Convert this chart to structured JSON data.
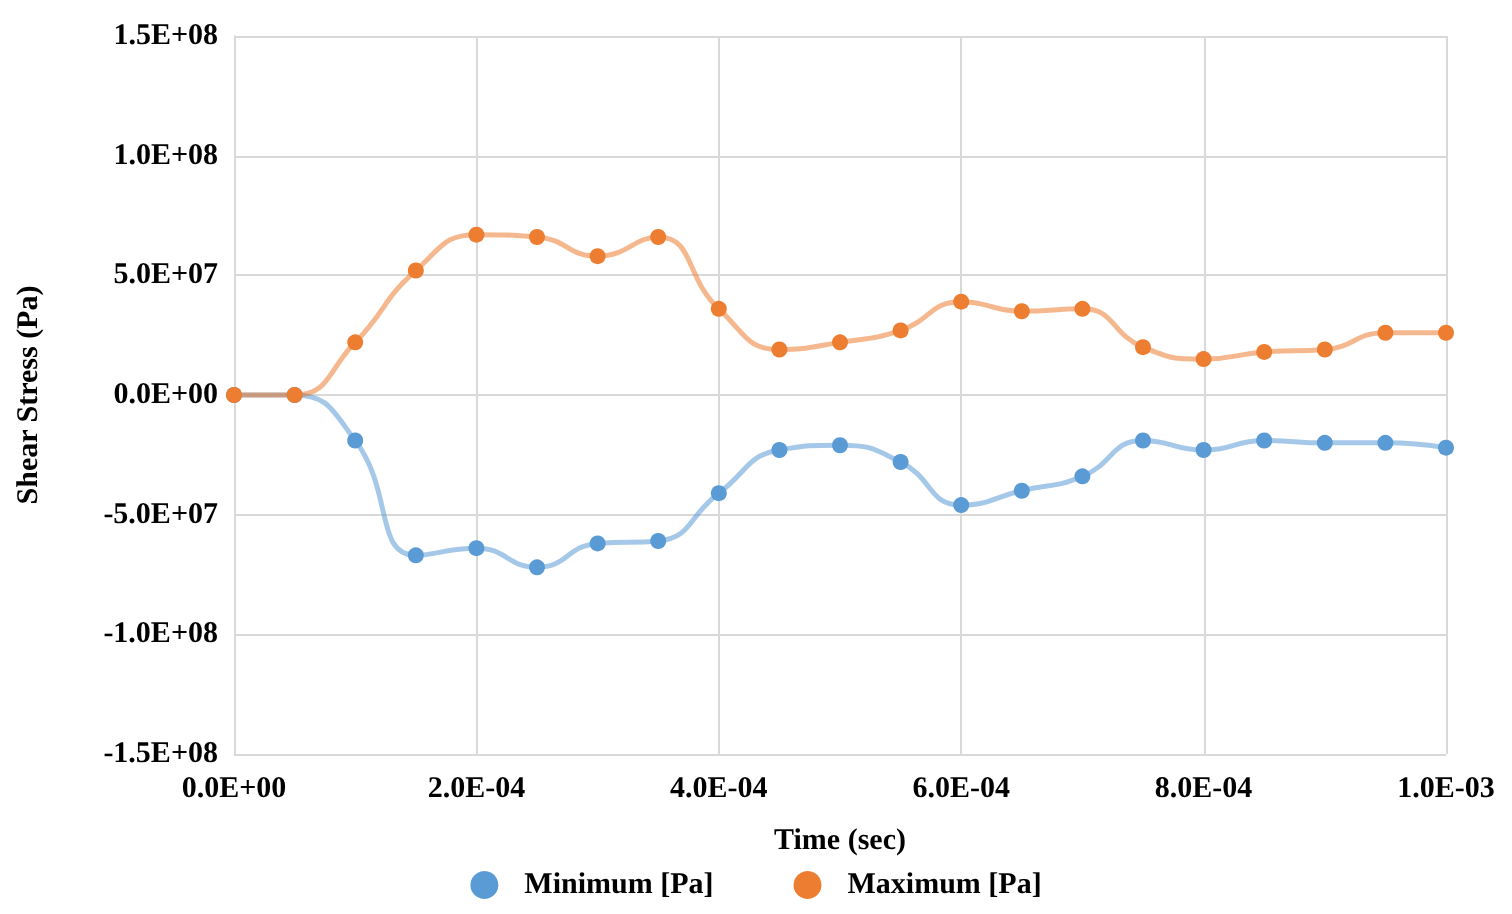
{
  "chart_data": {
    "type": "line",
    "xlabel": "Time (sec)",
    "ylabel": "Shear Stress (Pa)",
    "x": [
      0,
      5e-05,
      0.0001,
      0.00015,
      0.0002,
      0.00025,
      0.0003,
      0.00035,
      0.0004,
      0.00045,
      0.0005,
      0.00055,
      0.0006,
      0.00065,
      0.0007,
      0.00075,
      0.0008,
      0.00085,
      0.0009,
      0.00095,
      0.001
    ],
    "series": [
      {
        "name": "Minimum [Pa]",
        "color": "#5b9bd5",
        "values": [
          0,
          0,
          -19000000.0,
          -67000000.0,
          -64000000.0,
          -72000000.0,
          -62000000.0,
          -61000000.0,
          -41000000.0,
          -23000000.0,
          -21000000.0,
          -28000000.0,
          -46000000.0,
          -40000000.0,
          -34000000.0,
          -19000000.0,
          -23000000.0,
          -19000000.0,
          -20000000.0,
          -20000000.0,
          -22000000.0
        ]
      },
      {
        "name": "Maximum [Pa]",
        "color": "#ed7d31",
        "values": [
          0,
          0,
          22000000.0,
          52000000.0,
          67000000.0,
          66000000.0,
          58000000.0,
          66000000.0,
          36000000.0,
          19000000.0,
          22000000.0,
          27000000.0,
          39000000.0,
          35000000.0,
          36000000.0,
          20000000.0,
          15000000.0,
          18000000.0,
          19000000.0,
          26000000.0,
          26000000.0
        ]
      }
    ],
    "xlim": [
      0,
      0.001
    ],
    "xticks": [
      {
        "value": 0,
        "label": "0.0E+00"
      },
      {
        "value": 0.0002,
        "label": "2.0E-04"
      },
      {
        "value": 0.0004,
        "label": "4.0E-04"
      },
      {
        "value": 0.0006,
        "label": "6.0E-04"
      },
      {
        "value": 0.0008,
        "label": "8.0E-04"
      },
      {
        "value": 0.001,
        "label": "1.0E-03"
      }
    ],
    "ylim": [
      -150000000.0,
      150000000.0
    ],
    "yticks": [
      {
        "value": -150000000.0,
        "label": "-1.5E+08"
      },
      {
        "value": -100000000.0,
        "label": "-1.0E+08"
      },
      {
        "value": -50000000.0,
        "label": "-5.0E+07"
      },
      {
        "value": 0,
        "label": "0.0E+00"
      },
      {
        "value": 50000000.0,
        "label": "5.0E+07"
      },
      {
        "value": 100000000.0,
        "label": "1.0E+08"
      },
      {
        "value": 150000000.0,
        "label": "1.5E+08"
      }
    ],
    "grid": true,
    "legend": "bottom",
    "marker": "circle",
    "line_style": "solid"
  }
}
